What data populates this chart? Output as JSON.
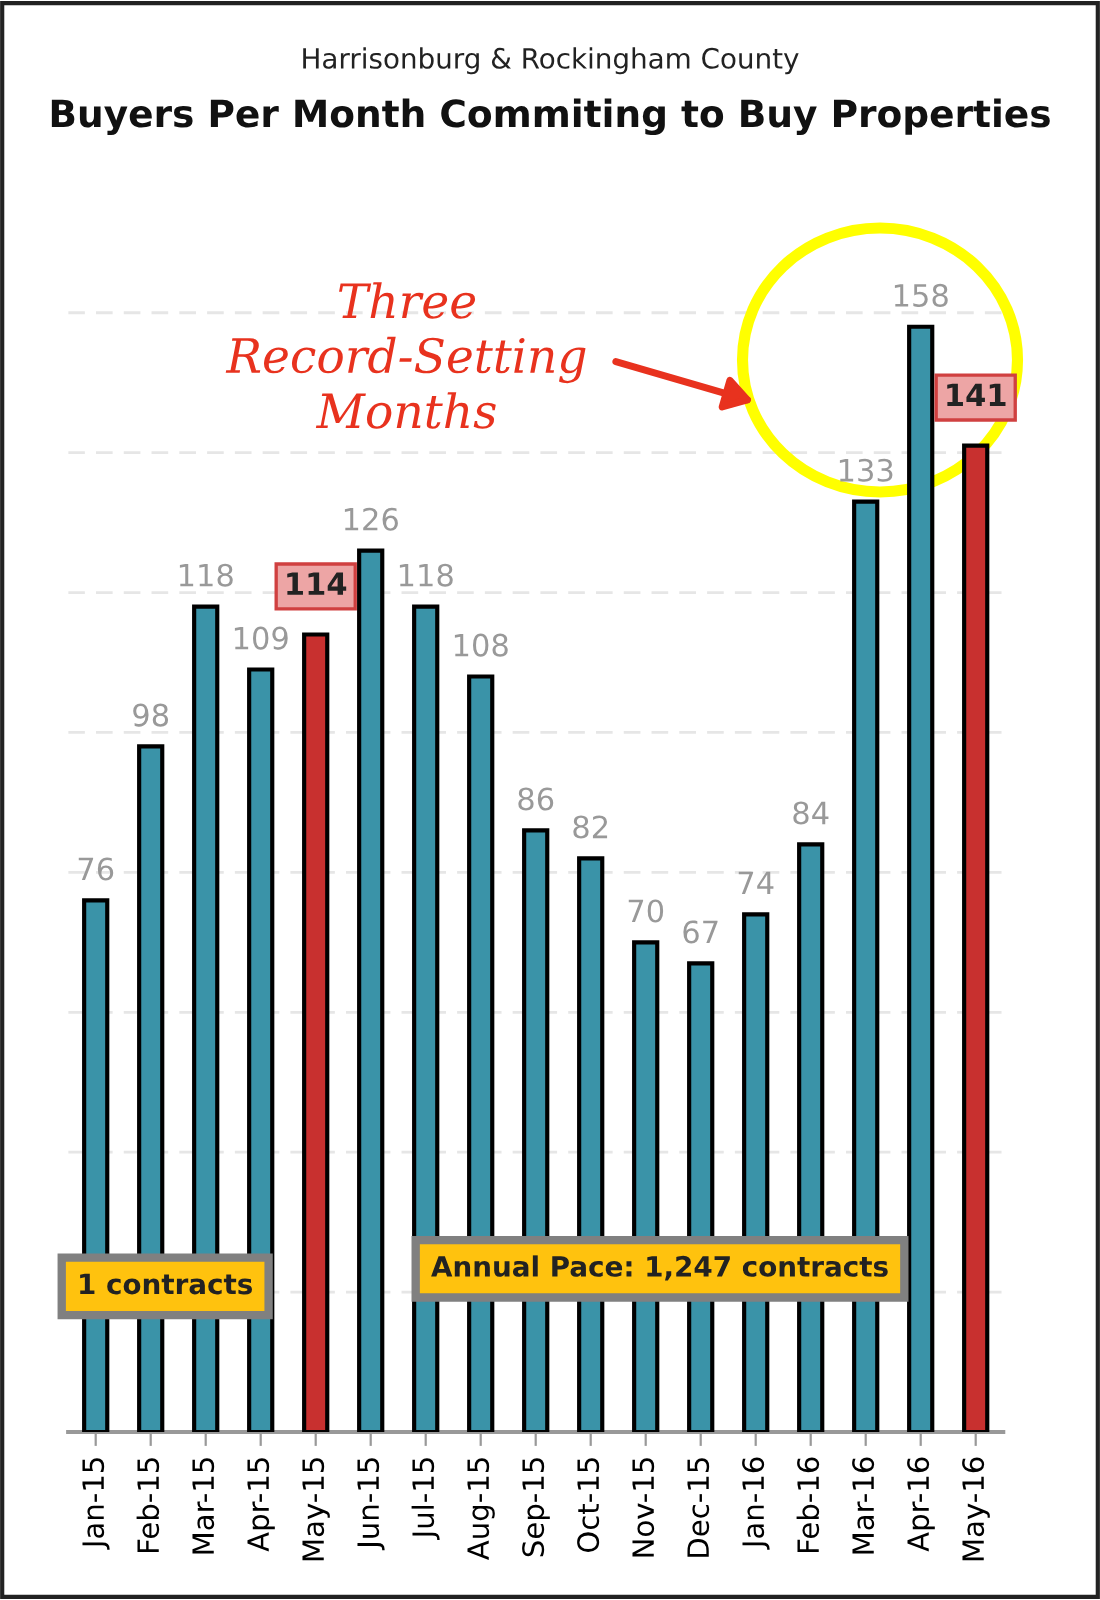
{
  "chart_data": {
    "type": "bar",
    "title": "Buyers Per Month Commiting to Buy Properties",
    "subtitle": "Harrisonburg & Rockingham County",
    "categories": [
      "Jan-15",
      "Feb-15",
      "Mar-15",
      "Apr-15",
      "May-15",
      "Jun-15",
      "Jul-15",
      "Aug-15",
      "Sep-15",
      "Oct-15",
      "Nov-15",
      "Dec-15",
      "Jan-16",
      "Feb-16",
      "Mar-16",
      "Apr-16",
      "May-16"
    ],
    "values": [
      76,
      98,
      118,
      109,
      114,
      126,
      118,
      108,
      86,
      82,
      70,
      67,
      74,
      84,
      133,
      158,
      141
    ],
    "colors": [
      "#3a93a8",
      "#3a93a8",
      "#3a93a8",
      "#3a93a8",
      "#c8302f",
      "#3a93a8",
      "#3a93a8",
      "#3a93a8",
      "#3a93a8",
      "#3a93a8",
      "#3a93a8",
      "#3a93a8",
      "#3a93a8",
      "#3a93a8",
      "#3a93a8",
      "#3a93a8",
      "#c8302f"
    ],
    "yticks": [
      {
        "value": 20,
        "label": null
      },
      {
        "value": 40,
        "label": null
      },
      {
        "value": 60,
        "label": null
      },
      {
        "value": 80,
        "label": null
      },
      {
        "value": 100,
        "label": null
      },
      {
        "value": 120,
        "label": null
      },
      {
        "value": 140,
        "label": null
      },
      {
        "value": 160,
        "label": null
      }
    ],
    "tick_labels": "x",
    "grid": "y",
    "data_labels": true,
    "annotations": [
      "Three\nRecord-Setting\nMonths",
      "1 contracts",
      "Annual Pace: 1,247 contracts"
    ]
  }
}
